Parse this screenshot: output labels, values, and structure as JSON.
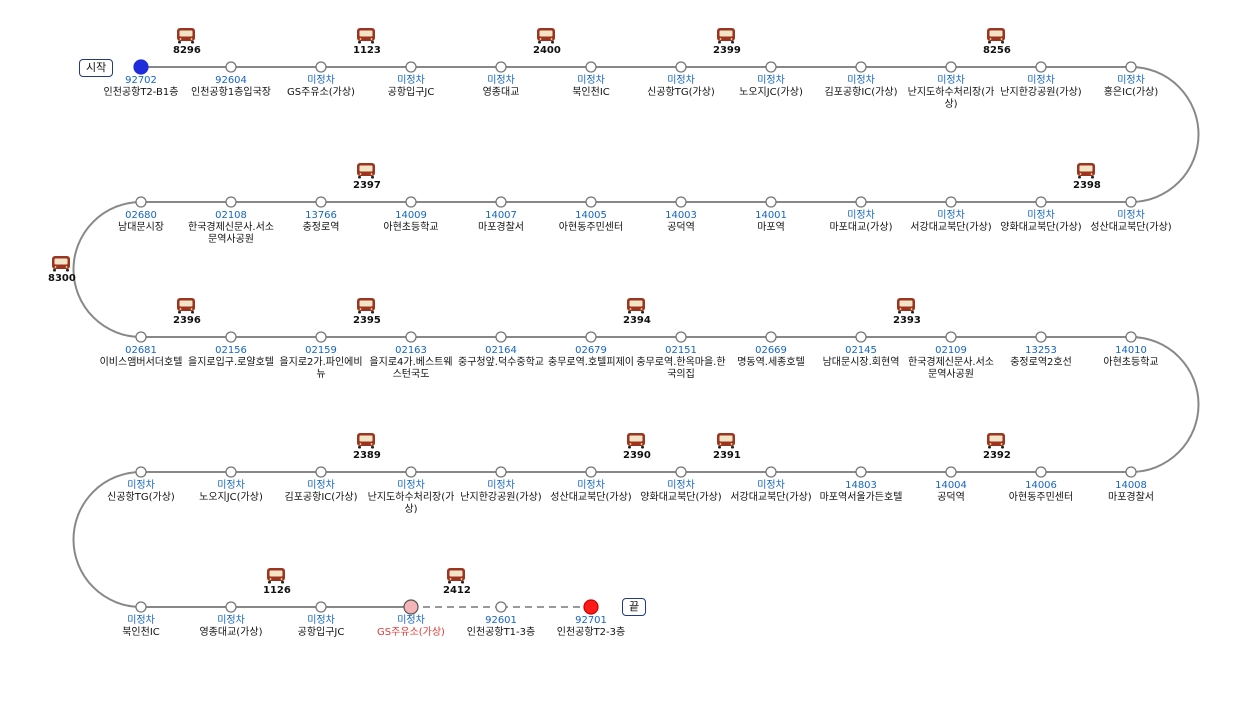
{
  "labels": {
    "start": "시작",
    "end": "끝"
  },
  "colors": {
    "route_driven": "#888888",
    "route_pending": "#999999",
    "start_dot": "#1e2cdb",
    "end_dot": "#ff1a1a",
    "current_dot": "#f5b5b8",
    "stop_code": "#1565c0",
    "current_name": "#e53935",
    "bus_body": "#9b3522"
  },
  "current_stop_index": 51,
  "stops": [
    {
      "code": "92702",
      "name": "인천공항T2-B1층"
    },
    {
      "code": "92604",
      "name": "인천공항1층입국장"
    },
    {
      "code": "미정차",
      "name": "GS주유소(가상)"
    },
    {
      "code": "미정차",
      "name": "공항입구JC"
    },
    {
      "code": "미정차",
      "name": "영종대교"
    },
    {
      "code": "미정차",
      "name": "북인천IC"
    },
    {
      "code": "미정차",
      "name": "신공항TG(가상)"
    },
    {
      "code": "미정차",
      "name": "노오지JC(가상)"
    },
    {
      "code": "미정차",
      "name": "김포공항IC(가상)"
    },
    {
      "code": "미정차",
      "name": "난지도하수처리장(가상)"
    },
    {
      "code": "미정차",
      "name": "난지한강공원(가상)"
    },
    {
      "code": "미정차",
      "name": "홍은IC(가상)"
    },
    {
      "code": "미정차",
      "name": "성산대교북단(가상)"
    },
    {
      "code": "미정차",
      "name": "양화대교북단(가상)"
    },
    {
      "code": "미정차",
      "name": "서강대교북단(가상)"
    },
    {
      "code": "미정차",
      "name": "마포대교(가상)"
    },
    {
      "code": "14001",
      "name": "마포역"
    },
    {
      "code": "14003",
      "name": "공덕역"
    },
    {
      "code": "14005",
      "name": "아현동주민센터"
    },
    {
      "code": "14007",
      "name": "마포경찰서"
    },
    {
      "code": "14009",
      "name": "아현초등학교"
    },
    {
      "code": "13766",
      "name": "충정로역"
    },
    {
      "code": "02108",
      "name": "한국경제신문사.서소문역사공원"
    },
    {
      "code": "02680",
      "name": "남대문시장"
    },
    {
      "code": "02681",
      "name": "이비스앰버서더호텔"
    },
    {
      "code": "02156",
      "name": "을지로입구.로얄호텔"
    },
    {
      "code": "02159",
      "name": "을지로2가.파인에비뉴"
    },
    {
      "code": "02163",
      "name": "을지로4가.베스트웨스턴국도"
    },
    {
      "code": "02164",
      "name": "중구청앞.덕수중학교"
    },
    {
      "code": "02679",
      "name": "충무로역.호텔피제이"
    },
    {
      "code": "02151",
      "name": "충무로역.한옥마을.한국의집"
    },
    {
      "code": "02669",
      "name": "명동역.세종호텔"
    },
    {
      "code": "02145",
      "name": "남대문시장.회현역"
    },
    {
      "code": "02109",
      "name": "한국경제신문사.서소문역사공원"
    },
    {
      "code": "13253",
      "name": "충정로역2호선"
    },
    {
      "code": "14010",
      "name": "아현초등학교"
    },
    {
      "code": "14008",
      "name": "마포경찰서"
    },
    {
      "code": "14006",
      "name": "아현동주민센터"
    },
    {
      "code": "14004",
      "name": "공덕역"
    },
    {
      "code": "14803",
      "name": "마포역서울가든호텔"
    },
    {
      "code": "미정차",
      "name": "서강대교북단(가상)"
    },
    {
      "code": "미정차",
      "name": "양화대교북단(가상)"
    },
    {
      "code": "미정차",
      "name": "성산대교북단(가상)"
    },
    {
      "code": "미정차",
      "name": "난지한강공원(가상)"
    },
    {
      "code": "미정차",
      "name": "난지도하수처리장(가상)"
    },
    {
      "code": "미정차",
      "name": "김포공항IC(가상)"
    },
    {
      "code": "미정차",
      "name": "노오지JC(가상)"
    },
    {
      "code": "미정차",
      "name": "신공항TG(가상)"
    },
    {
      "code": "미정차",
      "name": "북인천IC"
    },
    {
      "code": "미정차",
      "name": "영종대교(가상)"
    },
    {
      "code": "미정차",
      "name": "공항입구JC"
    },
    {
      "code": "미정차",
      "name": "GS주유소(가상)"
    },
    {
      "code": "92601",
      "name": "인천공항T1-3층"
    },
    {
      "code": "92701",
      "name": "인천공항T2-3층"
    }
  ],
  "buses": [
    {
      "number": "8296",
      "stop_index": 0.5
    },
    {
      "number": "1123",
      "stop_index": 2.5
    },
    {
      "number": "2400",
      "stop_index": 4.5
    },
    {
      "number": "2399",
      "stop_index": 6.5
    },
    {
      "number": "8256",
      "stop_index": 9.5
    },
    {
      "number": "2398",
      "stop_index": 12.5
    },
    {
      "number": "2397",
      "stop_index": 20.5
    },
    {
      "number": "8300",
      "stop_index": 23.5
    },
    {
      "number": "2396",
      "stop_index": 24.5
    },
    {
      "number": "2395",
      "stop_index": 26.5
    },
    {
      "number": "2394",
      "stop_index": 29.5
    },
    {
      "number": "2393",
      "stop_index": 32.5
    },
    {
      "number": "2392",
      "stop_index": 37.5
    },
    {
      "number": "2391",
      "stop_index": 40.5
    },
    {
      "number": "2390",
      "stop_index": 41.5
    },
    {
      "number": "2389",
      "stop_index": 44.5
    },
    {
      "number": "1126",
      "stop_index": 49.5
    },
    {
      "number": "2412",
      "stop_index": 51.5
    }
  ]
}
